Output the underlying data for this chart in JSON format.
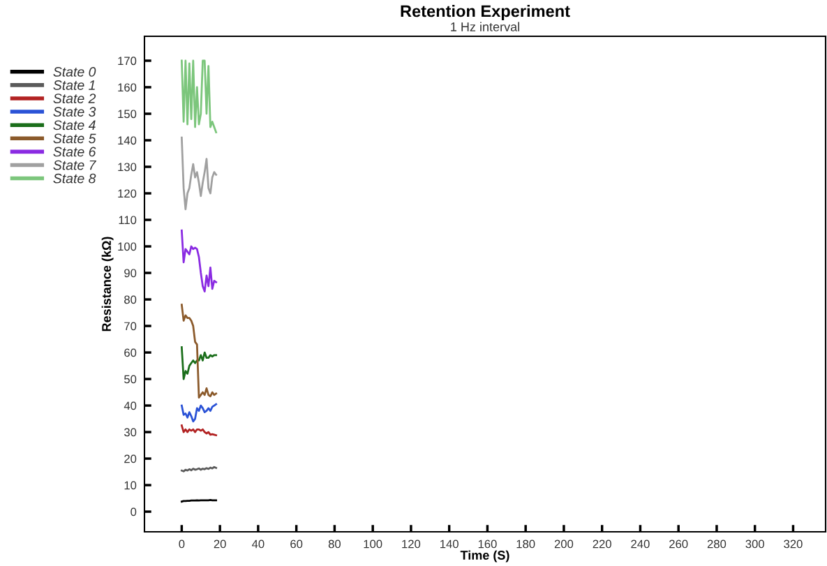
{
  "chart_data": {
    "type": "line",
    "title": "Retention Experiment",
    "subtitle": "1 Hz interval",
    "xlabel": "Time (S)",
    "ylabel": "Resistance (kΩ)",
    "x": [
      0,
      1,
      2,
      3,
      4,
      5,
      6,
      7,
      8,
      9,
      10,
      11,
      12,
      13,
      14,
      15,
      16,
      17,
      18
    ],
    "xlim": [
      -19.5,
      337
    ],
    "xticks": [
      0,
      20,
      40,
      60,
      80,
      100,
      120,
      140,
      160,
      180,
      200,
      220,
      240,
      260,
      280,
      300,
      320
    ],
    "ylim": [
      -7.6,
      179.2
    ],
    "yticks": [
      0,
      10,
      20,
      30,
      40,
      50,
      60,
      70,
      80,
      90,
      100,
      110,
      120,
      130,
      140,
      150,
      160,
      170
    ],
    "grid": false,
    "legend": "top left",
    "marker": "none",
    "line_style": "solid",
    "series": [
      {
        "name": "State 0",
        "color": "#000000",
        "values": [
          3.8,
          4.0,
          4.0,
          4.1,
          4.1,
          4.2,
          4.2,
          4.2,
          4.3,
          4.2,
          4.3,
          4.3,
          4.3,
          4.3,
          4.3,
          4.4,
          4.3,
          4.3,
          4.3
        ]
      },
      {
        "name": "State 1",
        "color": "#5a5a5a",
        "values": [
          15.5,
          15.2,
          15.8,
          15.5,
          16.0,
          15.6,
          16.2,
          15.8,
          16.0,
          16.3,
          15.8,
          16.2,
          16.0,
          16.4,
          16.1,
          16.6,
          16.3,
          16.8,
          16.5
        ]
      },
      {
        "name": "State 2",
        "color": "#b22222",
        "values": [
          32.5,
          30.0,
          31.0,
          30.0,
          31.0,
          30.5,
          31.0,
          30.0,
          31.0,
          31.0,
          30.5,
          31.0,
          30.0,
          29.5,
          30.0,
          29.0,
          29.2,
          29.0,
          28.8
        ]
      },
      {
        "name": "State 3",
        "color": "#2a52d6",
        "values": [
          40.0,
          36.5,
          37.0,
          35.5,
          37.5,
          36.0,
          34.0,
          35.0,
          39.0,
          38.0,
          40.0,
          39.0,
          37.5,
          38.0,
          39.0,
          38.0,
          39.5,
          40.0,
          40.5
        ]
      },
      {
        "name": "State 4",
        "color": "#1a6e1a",
        "values": [
          62.0,
          50.0,
          53.0,
          52.0,
          55.0,
          56.0,
          57.0,
          56.0,
          57.0,
          57.0,
          59.0,
          57.0,
          60.0,
          58.0,
          58.0,
          59.0,
          58.5,
          59.0,
          59.0
        ]
      },
      {
        "name": "State 5",
        "color": "#8b5a2b",
        "values": [
          78.0,
          72.0,
          74.0,
          73.0,
          73.0,
          72.0,
          70.0,
          64.0,
          63.0,
          43.0,
          44.0,
          45.0,
          44.0,
          46.5,
          44.0,
          43.5,
          45.0,
          44.0,
          44.5
        ]
      },
      {
        "name": "State 6",
        "color": "#8a2be2",
        "values": [
          106.0,
          94.0,
          99.0,
          98.0,
          97.0,
          100.0,
          99.0,
          99.5,
          99.0,
          96.0,
          90.0,
          85.0,
          83.0,
          89.0,
          85.0,
          92.0,
          84.0,
          87.0,
          86.5
        ]
      },
      {
        "name": "State 7",
        "color": "#a0a0a0",
        "values": [
          141.0,
          122.0,
          114.0,
          120.0,
          122.0,
          127.0,
          131.0,
          126.0,
          128.0,
          124.0,
          119.0,
          124.0,
          128.0,
          133.0,
          122.0,
          120.0,
          126.0,
          128.0,
          127.0
        ]
      },
      {
        "name": "State 8",
        "color": "#7cc67c",
        "values": [
          170.0,
          147.0,
          170.0,
          146.0,
          169.0,
          148.0,
          170.0,
          145.0,
          160.0,
          146.0,
          150.0,
          170.0,
          170.0,
          150.0,
          168.0,
          145.0,
          147.0,
          145.0,
          143.0
        ]
      }
    ]
  }
}
